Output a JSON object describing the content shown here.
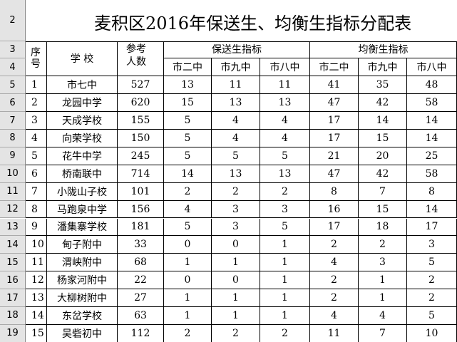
{
  "title": "麦积区2016年保送生、均衡生指标分配表",
  "row_numbers": [
    "2",
    "3",
    "4",
    "5",
    "6",
    "7",
    "8",
    "9",
    "10",
    "11",
    "12",
    "13",
    "14",
    "15",
    "16",
    "17",
    "18",
    "19"
  ],
  "header": {
    "seq": "序号",
    "school": "学 校",
    "count": "参考人数",
    "group1": "保送生指标",
    "group2": "均衡生指标",
    "subheaders": [
      "市二中",
      "市九中",
      "市八中",
      "市二中",
      "市九中",
      "市八中"
    ]
  },
  "rows": [
    [
      1,
      "市七中",
      527,
      13,
      11,
      11,
      41,
      35,
      48
    ],
    [
      2,
      "龙园中学",
      620,
      15,
      13,
      13,
      47,
      42,
      58
    ],
    [
      3,
      "天成学校",
      155,
      5,
      4,
      4,
      17,
      14,
      14
    ],
    [
      4,
      "向荣学校",
      150,
      5,
      4,
      4,
      17,
      15,
      14
    ],
    [
      5,
      "花牛中学",
      245,
      5,
      5,
      5,
      21,
      20,
      25
    ],
    [
      6,
      "桥南联中",
      714,
      14,
      13,
      13,
      47,
      42,
      58
    ],
    [
      7,
      "小陇山子校",
      101,
      2,
      2,
      2,
      8,
      7,
      8
    ],
    [
      8,
      "马跑泉中学",
      156,
      4,
      3,
      3,
      16,
      15,
      14
    ],
    [
      9,
      "潘集寨学校",
      181,
      5,
      3,
      5,
      17,
      18,
      17
    ],
    [
      10,
      "甸子附中",
      33,
      0,
      0,
      1,
      2,
      2,
      3
    ],
    [
      11,
      "渭峡附中",
      68,
      1,
      1,
      1,
      4,
      3,
      5
    ],
    [
      12,
      "杨家河附中",
      22,
      0,
      0,
      1,
      2,
      1,
      2
    ],
    [
      13,
      "大柳树附中",
      27,
      1,
      1,
      1,
      2,
      1,
      2
    ],
    [
      14,
      "东岔学校",
      63,
      1,
      1,
      1,
      4,
      4,
      5
    ],
    [
      15,
      "吴砦初中",
      112,
      2,
      2,
      2,
      11,
      7,
      10
    ]
  ]
}
